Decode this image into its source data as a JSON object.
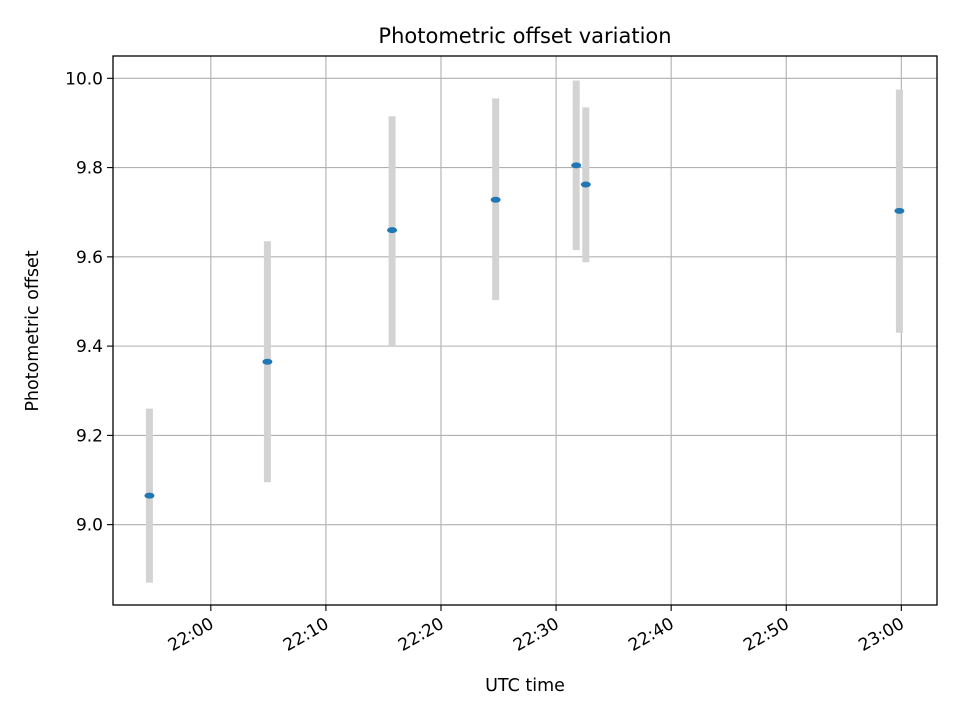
{
  "chart_data": {
    "type": "scatter",
    "title": "Photometric offset variation",
    "xlabel": "UTC time",
    "ylabel": "Photometric offset",
    "x_tick_labels": [
      "22:00",
      "22:10",
      "22:20",
      "22:30",
      "22:40",
      "22:50",
      "23:00"
    ],
    "x_ticks_minutes": [
      1320,
      1330,
      1340,
      1350,
      1360,
      1370,
      1380
    ],
    "xlim_minutes": [
      1311.5,
      1383.1
    ],
    "y_tick_labels": [
      "9.0",
      "9.2",
      "9.4",
      "9.6",
      "9.8",
      "10.0"
    ],
    "y_ticks": [
      9.0,
      9.2,
      9.4,
      9.6,
      9.8,
      10.0
    ],
    "ylim": [
      8.82,
      10.05
    ],
    "grid": true,
    "points": [
      {
        "time": "21:54:40",
        "y": 9.065,
        "ylow": 8.87,
        "yhigh": 9.26
      },
      {
        "time": "22:04:55",
        "y": 9.365,
        "ylow": 9.095,
        "yhigh": 9.635
      },
      {
        "time": "22:15:45",
        "y": 9.66,
        "ylow": 9.4,
        "yhigh": 9.915
      },
      {
        "time": "22:24:45",
        "y": 9.728,
        "ylow": 9.503,
        "yhigh": 9.955
      },
      {
        "time": "22:31:45",
        "y": 9.805,
        "ylow": 9.615,
        "yhigh": 9.995
      },
      {
        "time": "22:32:35",
        "y": 9.762,
        "ylow": 9.588,
        "yhigh": 9.935
      },
      {
        "time": "22:59:50",
        "y": 9.703,
        "ylow": 9.43,
        "yhigh": 9.975
      }
    ],
    "colors": {
      "marker": "#1f77b4",
      "errorbar": "#d3d3d3",
      "grid": "#b0b0b0"
    }
  }
}
